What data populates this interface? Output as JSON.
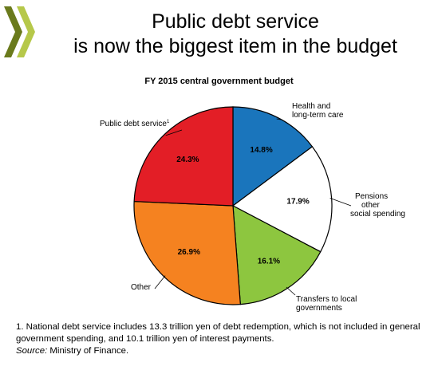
{
  "header": {
    "title_line1": "Public debt service",
    "title_line2": "is now the biggest item in the budget"
  },
  "chart_data": {
    "type": "pie",
    "title": "FY 2015 central government budget",
    "slices": [
      {
        "label": "Health and long-term care",
        "label_lines": [
          "Health and",
          "long-term care"
        ],
        "value": 14.8,
        "display": "14.8%",
        "color": "#1a75bc"
      },
      {
        "label": "Pensions other social spending",
        "label_lines": [
          "Pensions",
          "other",
          "social spending"
        ],
        "value": 17.9,
        "display": "17.9%",
        "color": "#ffffff"
      },
      {
        "label": "Transfers to local governments",
        "label_lines": [
          "Transfers to local",
          "governments"
        ],
        "value": 16.1,
        "display": "16.1%",
        "color": "#8dc63f"
      },
      {
        "label": "Other",
        "label_lines": [
          "Other"
        ],
        "value": 26.9,
        "display": "26.9%",
        "color": "#f58220"
      },
      {
        "label": "Public debt service",
        "label_lines": [
          "Public debt service"
        ],
        "label_sup": "1",
        "value": 24.3,
        "display": "24.3%",
        "color": "#e31e26"
      }
    ]
  },
  "footnotes": {
    "note1": "1. National debt service includes 13.3 trillion yen of debt redemption, which is not included in general government spending, and 10.1 trillion yen of interest payments.",
    "source_label": "Source:",
    "source_text": " Ministry of Finance."
  },
  "colors": {
    "logo_dark": "#6a7a1c",
    "logo_light": "#b6c84a"
  }
}
